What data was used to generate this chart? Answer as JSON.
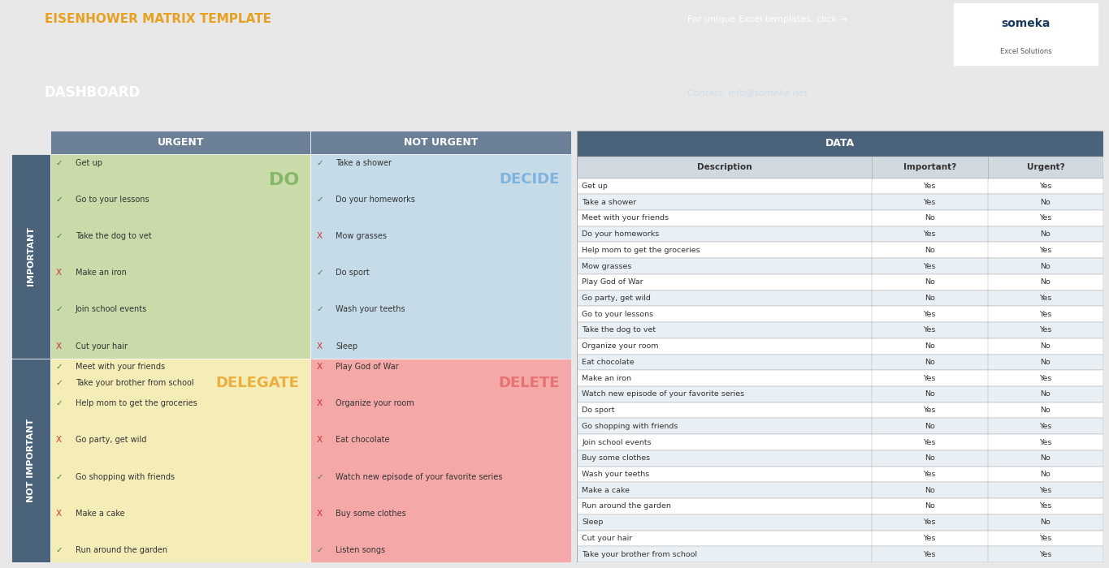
{
  "title_bar_color": "#1a1a1a",
  "title_text": "EISENHOWER MATRIX TEMPLATE",
  "title_color": "#e8a020",
  "dashboard_bar_color": "#4a637a",
  "dashboard_text": "DASHBOARD",
  "dashboard_color": "#ffffff",
  "someka_text": "For unique Excel templates, click →",
  "someka_contact": "Contact: info@someka.net",
  "header_color": "#6b7f96",
  "header_text_color": "#ffffff",
  "urgent_label": "URGENT",
  "not_urgent_label": "NOT URGENT",
  "important_label": "IMPORTANT",
  "not_important_label": "NOT IMPORTANT",
  "quadrant_do_color": "#c8dba8",
  "quadrant_decide_color": "#c5dce8",
  "quadrant_delegate_color": "#f5edb8",
  "quadrant_delete_color": "#f5a8a8",
  "do_label": "DO",
  "do_label_color": "#6aa84f",
  "decide_label": "DECIDE",
  "decide_label_color": "#6fa8dc",
  "delegate_label": "DELEGATE",
  "delegate_label_color": "#e8a020",
  "delete_label": "DELETE",
  "delete_label_color": "#e06666",
  "side_label_color": "#4a637a",
  "check_color": "#4a7a4a",
  "cross_color": "#cc3333",
  "do_items": [
    {
      "check": true,
      "text": "Get up"
    },
    {
      "check": true,
      "text": "Go to your lessons"
    },
    {
      "check": true,
      "text": "Take the dog to vet"
    },
    {
      "check": false,
      "text": "Make an iron"
    },
    {
      "check": true,
      "text": "Join school events"
    },
    {
      "check": false,
      "text": "Cut your hair"
    },
    {
      "check": true,
      "text": "Take your brother from school"
    }
  ],
  "decide_items": [
    {
      "check": true,
      "text": "Take a shower"
    },
    {
      "check": true,
      "text": "Do your homeworks"
    },
    {
      "check": false,
      "text": "Mow grasses"
    },
    {
      "check": true,
      "text": "Do sport"
    },
    {
      "check": true,
      "text": "Wash your teeths"
    },
    {
      "check": false,
      "text": "Sleep"
    }
  ],
  "delegate_items": [
    {
      "check": true,
      "text": "Meet with your friends"
    },
    {
      "check": true,
      "text": "Help mom to get the groceries"
    },
    {
      "check": false,
      "text": "Go party, get wild"
    },
    {
      "check": true,
      "text": "Go shopping with friends"
    },
    {
      "check": false,
      "text": "Make a cake"
    },
    {
      "check": true,
      "text": "Run around the garden"
    }
  ],
  "delete_items": [
    {
      "check": false,
      "text": "Play God of War"
    },
    {
      "check": false,
      "text": "Organize your room"
    },
    {
      "check": false,
      "text": "Eat chocolate"
    },
    {
      "check": true,
      "text": "Watch new episode of your favorite series"
    },
    {
      "check": false,
      "text": "Buy some clothes"
    },
    {
      "check": true,
      "text": "Listen songs"
    }
  ],
  "data_table_header": "DATA",
  "data_col_headers": [
    "Description",
    "Important?",
    "Urgent?"
  ],
  "data_rows": [
    [
      "Get up",
      "Yes",
      "Yes"
    ],
    [
      "Take a shower",
      "Yes",
      "No"
    ],
    [
      "Meet with your friends",
      "No",
      "Yes"
    ],
    [
      "Do your homeworks",
      "Yes",
      "No"
    ],
    [
      "Help mom to get the groceries",
      "No",
      "Yes"
    ],
    [
      "Mow grasses",
      "Yes",
      "No"
    ],
    [
      "Play God of War",
      "No",
      "No"
    ],
    [
      "Go party, get wild",
      "No",
      "Yes"
    ],
    [
      "Go to your lessons",
      "Yes",
      "Yes"
    ],
    [
      "Take the dog to vet",
      "Yes",
      "Yes"
    ],
    [
      "Organize your room",
      "No",
      "No"
    ],
    [
      "Eat chocolate",
      "No",
      "No"
    ],
    [
      "Make an iron",
      "Yes",
      "Yes"
    ],
    [
      "Watch new episode of your favorite series",
      "No",
      "No"
    ],
    [
      "Do sport",
      "Yes",
      "No"
    ],
    [
      "Go shopping with friends",
      "No",
      "Yes"
    ],
    [
      "Join school events",
      "Yes",
      "Yes"
    ],
    [
      "Buy some clothes",
      "No",
      "No"
    ],
    [
      "Wash your teeths",
      "Yes",
      "No"
    ],
    [
      "Make a cake",
      "No",
      "Yes"
    ],
    [
      "Run around the garden",
      "No",
      "Yes"
    ],
    [
      "Sleep",
      "Yes",
      "No"
    ],
    [
      "Cut your hair",
      "Yes",
      "Yes"
    ],
    [
      "Take your brother from school",
      "Yes",
      "Yes"
    ]
  ],
  "bg_color": "#f0f0f0",
  "cell_border_color": "#aaaaaa",
  "data_header_color": "#4a637a",
  "data_subheader_color": "#d0d8e0",
  "data_row_alt1": "#ffffff",
  "data_row_alt2": "#e8eff5"
}
